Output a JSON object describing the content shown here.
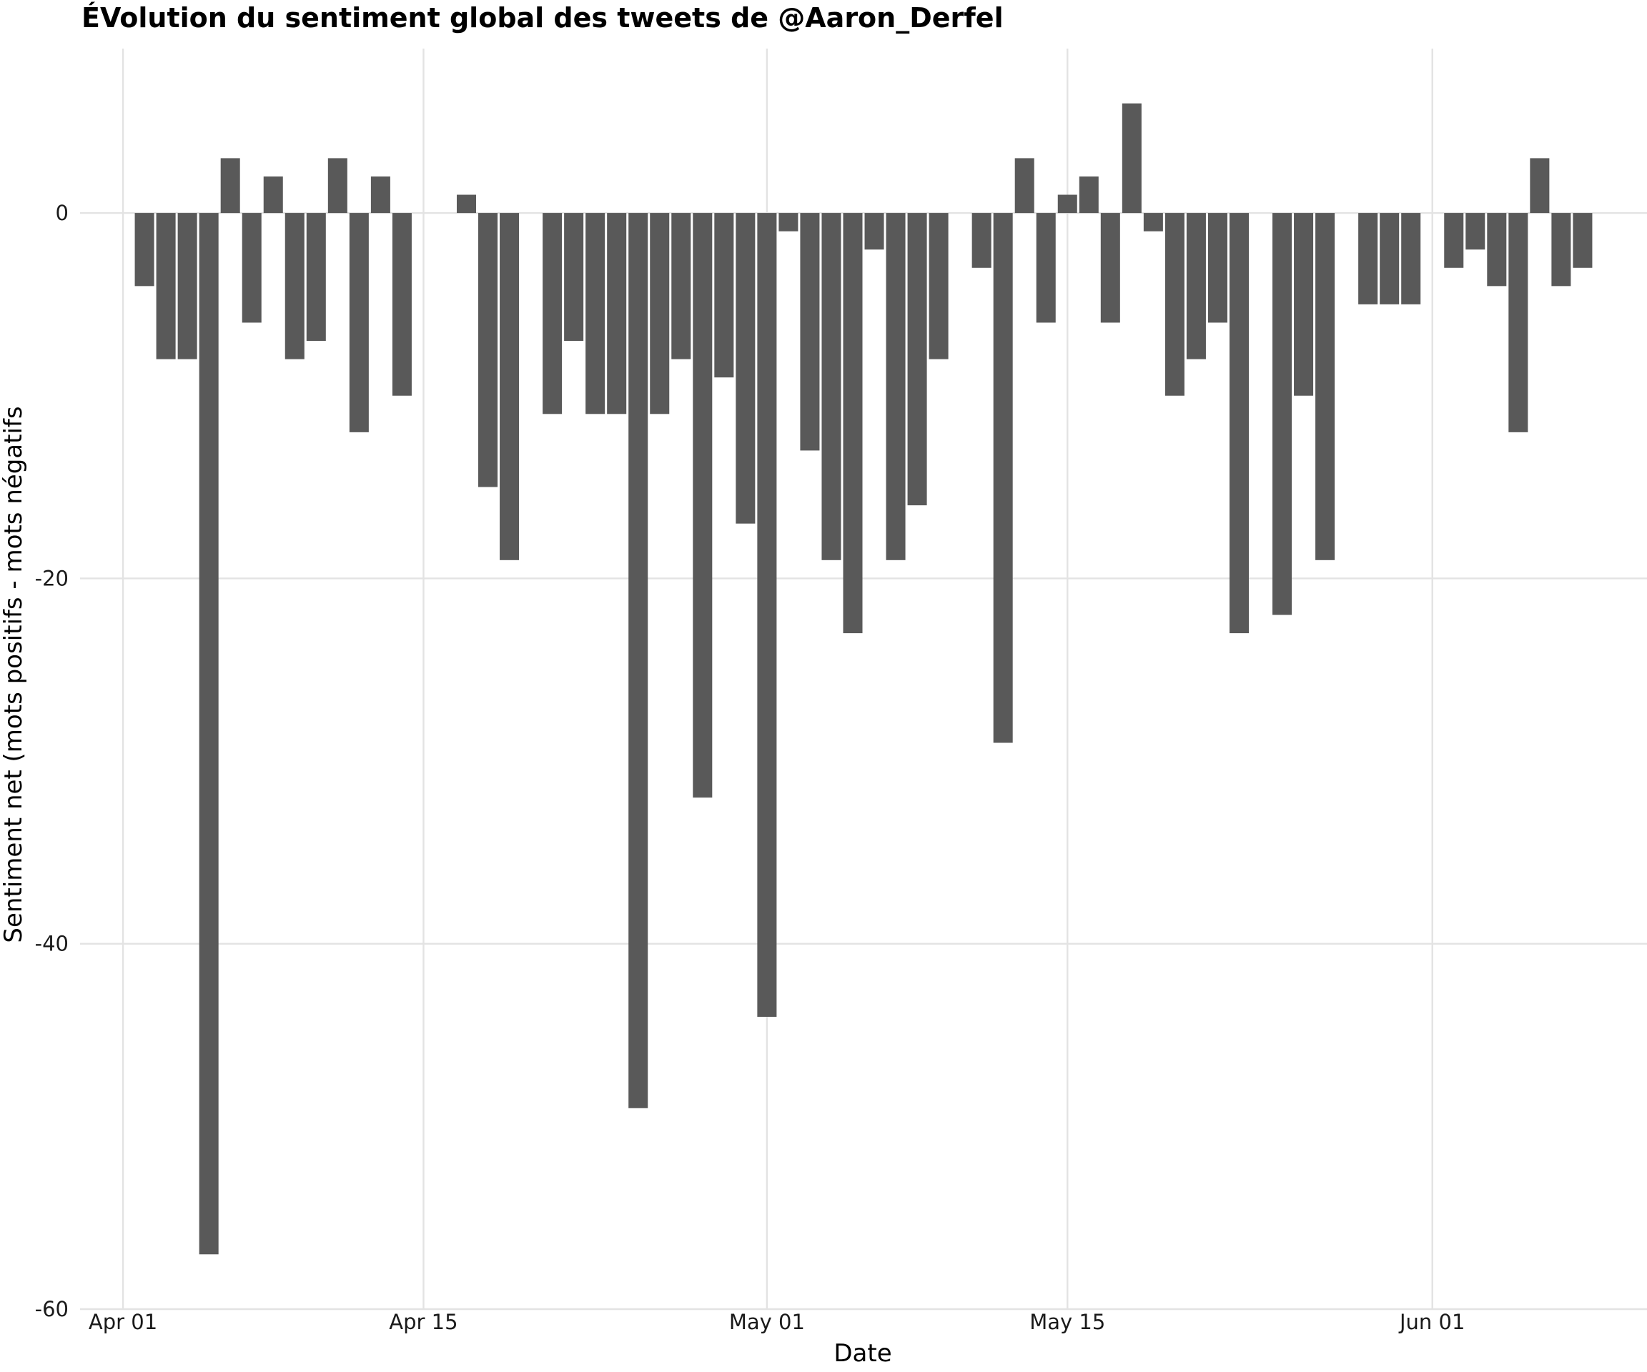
{
  "chart_data": {
    "type": "bar",
    "title": "ÉVolution du sentiment global des tweets de @Aaron_Derfel",
    "xlabel": "Date",
    "ylabel": "Sentiment net (mots positifs - mots négatifs",
    "ylim": [
      -60,
      9
    ],
    "yticks": [
      0,
      -20,
      -40,
      -60
    ],
    "xlim": [
      "2022-03-30",
      "2022-06-11"
    ],
    "xticks": [
      {
        "date": "2022-04-01",
        "label": "Apr 01"
      },
      {
        "date": "2022-04-15",
        "label": "Apr 15"
      },
      {
        "date": "2022-05-01",
        "label": "May 01"
      },
      {
        "date": "2022-05-15",
        "label": "May 15"
      },
      {
        "date": "2022-06-01",
        "label": "Jun 01"
      }
    ],
    "grid": true,
    "legend": "none",
    "bar_color": "#595959",
    "grid_color": "#e3e3e3",
    "points": [
      {
        "date": "2022-04-02",
        "value": -4
      },
      {
        "date": "2022-04-03",
        "value": -8
      },
      {
        "date": "2022-04-04",
        "value": -8
      },
      {
        "date": "2022-04-05",
        "value": -57
      },
      {
        "date": "2022-04-06",
        "value": 3
      },
      {
        "date": "2022-04-07",
        "value": -6
      },
      {
        "date": "2022-04-08",
        "value": 2
      },
      {
        "date": "2022-04-09",
        "value": -8
      },
      {
        "date": "2022-04-10",
        "value": -7
      },
      {
        "date": "2022-04-11",
        "value": 3
      },
      {
        "date": "2022-04-12",
        "value": -12
      },
      {
        "date": "2022-04-13",
        "value": 2
      },
      {
        "date": "2022-04-14",
        "value": -10
      },
      {
        "date": "2022-04-17",
        "value": 1
      },
      {
        "date": "2022-04-18",
        "value": -15
      },
      {
        "date": "2022-04-19",
        "value": -19
      },
      {
        "date": "2022-04-21",
        "value": -11
      },
      {
        "date": "2022-04-22",
        "value": -7
      },
      {
        "date": "2022-04-23",
        "value": -11
      },
      {
        "date": "2022-04-24",
        "value": -11
      },
      {
        "date": "2022-04-25",
        "value": -49
      },
      {
        "date": "2022-04-26",
        "value": -11
      },
      {
        "date": "2022-04-27",
        "value": -8
      },
      {
        "date": "2022-04-28",
        "value": -32
      },
      {
        "date": "2022-04-29",
        "value": -9
      },
      {
        "date": "2022-04-30",
        "value": -17
      },
      {
        "date": "2022-05-01",
        "value": -44
      },
      {
        "date": "2022-05-02",
        "value": -1
      },
      {
        "date": "2022-05-03",
        "value": -13
      },
      {
        "date": "2022-05-04",
        "value": -19
      },
      {
        "date": "2022-05-05",
        "value": -23
      },
      {
        "date": "2022-05-06",
        "value": -2
      },
      {
        "date": "2022-05-07",
        "value": -19
      },
      {
        "date": "2022-05-08",
        "value": -16
      },
      {
        "date": "2022-05-09",
        "value": -8
      },
      {
        "date": "2022-05-11",
        "value": -3
      },
      {
        "date": "2022-05-12",
        "value": -29
      },
      {
        "date": "2022-05-13",
        "value": 3
      },
      {
        "date": "2022-05-14",
        "value": -6
      },
      {
        "date": "2022-05-15",
        "value": 1
      },
      {
        "date": "2022-05-16",
        "value": 2
      },
      {
        "date": "2022-05-17",
        "value": -6
      },
      {
        "date": "2022-05-18",
        "value": 6
      },
      {
        "date": "2022-05-19",
        "value": -1
      },
      {
        "date": "2022-05-20",
        "value": -10
      },
      {
        "date": "2022-05-21",
        "value": -8
      },
      {
        "date": "2022-05-22",
        "value": -6
      },
      {
        "date": "2022-05-23",
        "value": -23
      },
      {
        "date": "2022-05-25",
        "value": -22
      },
      {
        "date": "2022-05-26",
        "value": -10
      },
      {
        "date": "2022-05-27",
        "value": -19
      },
      {
        "date": "2022-05-29",
        "value": -5
      },
      {
        "date": "2022-05-30",
        "value": -5
      },
      {
        "date": "2022-05-31",
        "value": -5
      },
      {
        "date": "2022-06-02",
        "value": -3
      },
      {
        "date": "2022-06-03",
        "value": -2
      },
      {
        "date": "2022-06-04",
        "value": -4
      },
      {
        "date": "2022-06-05",
        "value": -12
      },
      {
        "date": "2022-06-06",
        "value": 3
      },
      {
        "date": "2022-06-07",
        "value": -4
      },
      {
        "date": "2022-06-08",
        "value": -3
      }
    ]
  }
}
